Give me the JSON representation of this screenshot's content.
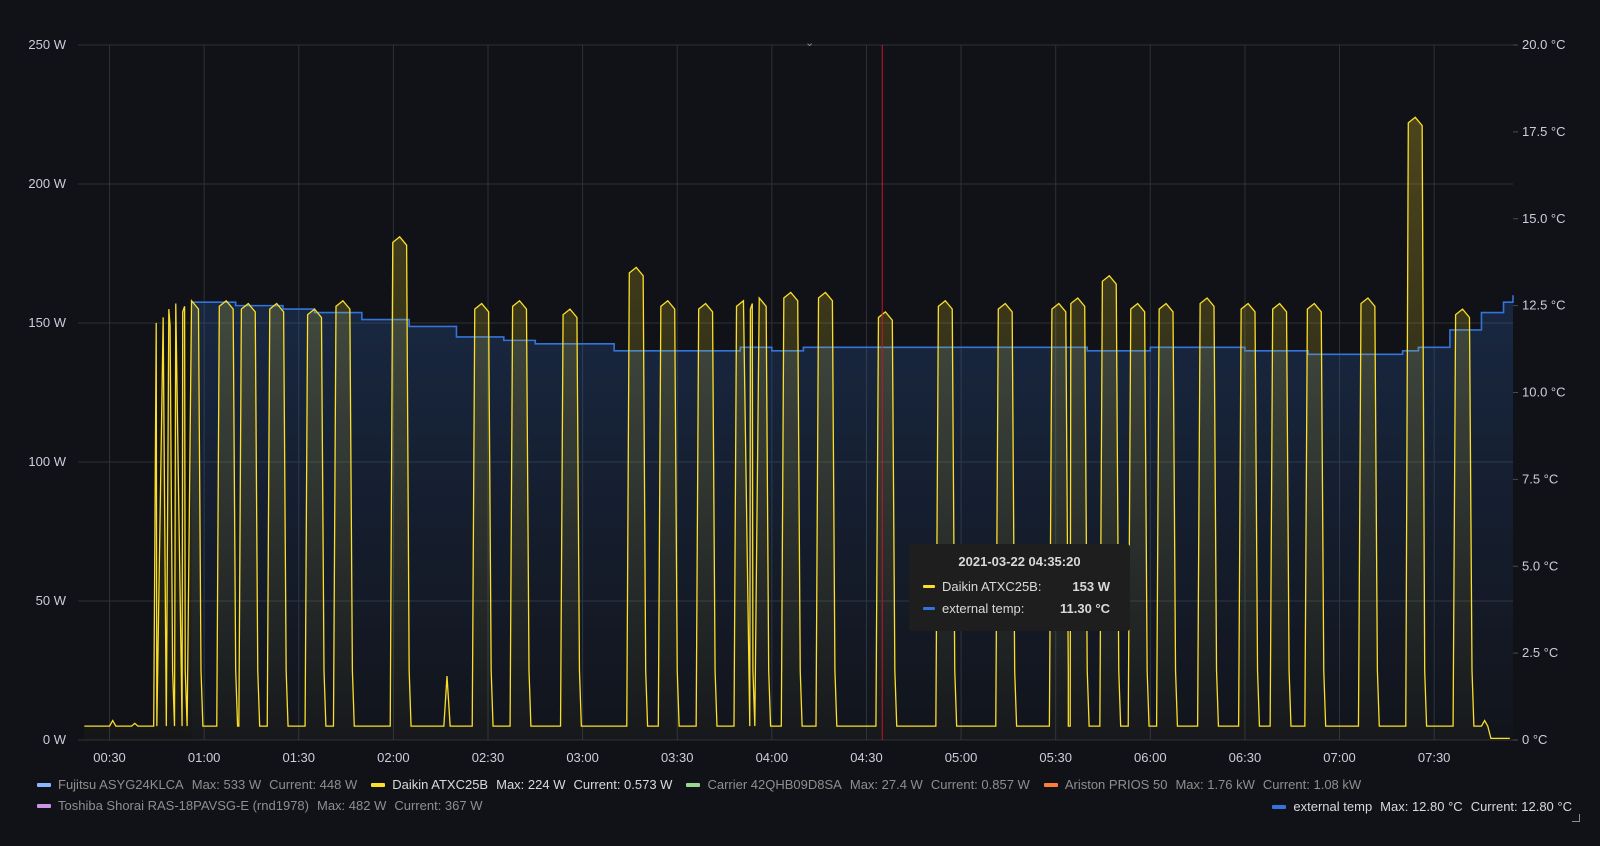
{
  "chart_data": {
    "type": "line",
    "x_range": [
      "00:20",
      "07:55"
    ],
    "x_ticks": [
      "00:30",
      "01:00",
      "01:30",
      "02:00",
      "02:30",
      "03:00",
      "03:30",
      "04:00",
      "04:30",
      "05:00",
      "05:30",
      "06:00",
      "06:30",
      "07:00",
      "07:30"
    ],
    "y_left": {
      "unit": "W",
      "ylim": [
        0,
        250
      ],
      "ticks": [
        "0 W",
        "50 W",
        "100 W",
        "150 W",
        "200 W",
        "250 W"
      ]
    },
    "y_right": {
      "unit": "°C",
      "ylim": [
        0,
        20
      ],
      "ticks": [
        "0 °C",
        "2.5 °C",
        "5.0 °C",
        "7.5 °C",
        "10.0 °C",
        "12.5 °C",
        "15.0 °C",
        "17.5 °C",
        "20.0 °C"
      ]
    },
    "grid": true,
    "cursor_time": "04:35",
    "series": [
      {
        "name": "Daikin ATXC25B",
        "axis": "left",
        "color": "#fade2a",
        "base": 5,
        "peaks": [
          [
            "00:31",
            7
          ],
          [
            "00:38",
            6
          ],
          [
            "00:44",
            5
          ],
          [
            "00:47",
            152
          ],
          [
            "00:51",
            157
          ],
          [
            "00:56",
            158
          ],
          [
            "01:07",
            158
          ],
          [
            "01:14",
            157
          ],
          [
            "01:23",
            157
          ],
          [
            "01:35",
            155
          ],
          [
            "01:44",
            158
          ],
          [
            "02:02",
            181
          ],
          [
            "02:17",
            23
          ],
          [
            "02:28",
            157
          ],
          [
            "02:40",
            158
          ],
          [
            "02:56",
            155
          ],
          [
            "03:17",
            170
          ],
          [
            "03:27",
            158
          ],
          [
            "03:39",
            157
          ],
          [
            "03:51",
            158
          ],
          [
            "03:56",
            159
          ],
          [
            "04:06",
            161
          ],
          [
            "04:17",
            161
          ],
          [
            "04:36",
            154
          ],
          [
            "04:55",
            158
          ],
          [
            "05:14",
            157
          ],
          [
            "05:31",
            157
          ],
          [
            "05:37",
            159
          ],
          [
            "05:47",
            167
          ],
          [
            "05:56",
            157
          ],
          [
            "06:05",
            157
          ],
          [
            "06:18",
            159
          ],
          [
            "06:31",
            157
          ],
          [
            "06:41",
            157
          ],
          [
            "06:52",
            157
          ],
          [
            "07:09",
            159
          ],
          [
            "07:24",
            224
          ],
          [
            "07:39",
            155
          ],
          [
            "07:46",
            7
          ]
        ],
        "end_value": 0.573,
        "legend_max": "224 W",
        "legend_current": "0.573 W"
      },
      {
        "name": "external temp",
        "axis": "right",
        "color": "#3274d9",
        "points": [
          [
            "00:56",
            12.6
          ],
          [
            "01:10",
            12.5
          ],
          [
            "01:25",
            12.4
          ],
          [
            "01:35",
            12.3
          ],
          [
            "01:50",
            12.1
          ],
          [
            "02:05",
            11.9
          ],
          [
            "02:20",
            11.6
          ],
          [
            "02:35",
            11.5
          ],
          [
            "02:45",
            11.4
          ],
          [
            "03:10",
            11.2
          ],
          [
            "03:50",
            11.3
          ],
          [
            "04:00",
            11.2
          ],
          [
            "04:10",
            11.3
          ],
          [
            "04:30",
            11.3
          ],
          [
            "04:35",
            11.3
          ],
          [
            "05:00",
            11.3
          ],
          [
            "05:40",
            11.2
          ],
          [
            "06:00",
            11.3
          ],
          [
            "06:30",
            11.2
          ],
          [
            "06:50",
            11.1
          ],
          [
            "07:20",
            11.2
          ],
          [
            "07:25",
            11.3
          ],
          [
            "07:35",
            11.8
          ],
          [
            "07:45",
            12.3
          ],
          [
            "07:52",
            12.6
          ],
          [
            "07:55",
            12.8
          ]
        ],
        "legend_max": "12.80 °C",
        "legend_current": "12.80 °C"
      }
    ]
  },
  "legend": {
    "row1": [
      {
        "name": "Fujitsu ASYG24KLCA",
        "color": "#8ab8ff",
        "max": "Max: 533 W",
        "current": "Current: 448 W",
        "active": false
      },
      {
        "name": "Daikin ATXC25B",
        "color": "#fade2a",
        "max": "Max: 224 W",
        "current": "Current: 0.573 W",
        "active": true
      },
      {
        "name": "Carrier 42QHB09D8SA",
        "color": "#96d98d",
        "max": "Max: 27.4 W",
        "current": "Current: 0.857 W",
        "active": false
      },
      {
        "name": "Ariston PRIOS 50",
        "color": "#ff7c3a",
        "max": "Max: 1.76 kW",
        "current": "Current: 1.08 kW",
        "active": false
      }
    ],
    "row2": [
      {
        "name": "Toshiba Shorai RAS-18PAVSG-E (rnd1978)",
        "color": "#ca95e5",
        "max": "Max: 482 W",
        "current": "Current: 367 W",
        "active": false
      }
    ],
    "right": {
      "name": "external temp",
      "color": "#3274d9",
      "max": "Max: 12.80 °C",
      "current": "Current: 12.80 °C"
    }
  },
  "tooltip": {
    "time": "2021-03-22 04:35:20",
    "rows": [
      {
        "label": "Daikin ATXC25B:",
        "value": "153 W",
        "color": "#fade2a"
      },
      {
        "label": "external temp:",
        "value": "11.30 °C",
        "color": "#3274d9"
      }
    ]
  },
  "icons": {
    "collapse": "chevron-down-icon",
    "resize": "resize-handle-icon"
  }
}
